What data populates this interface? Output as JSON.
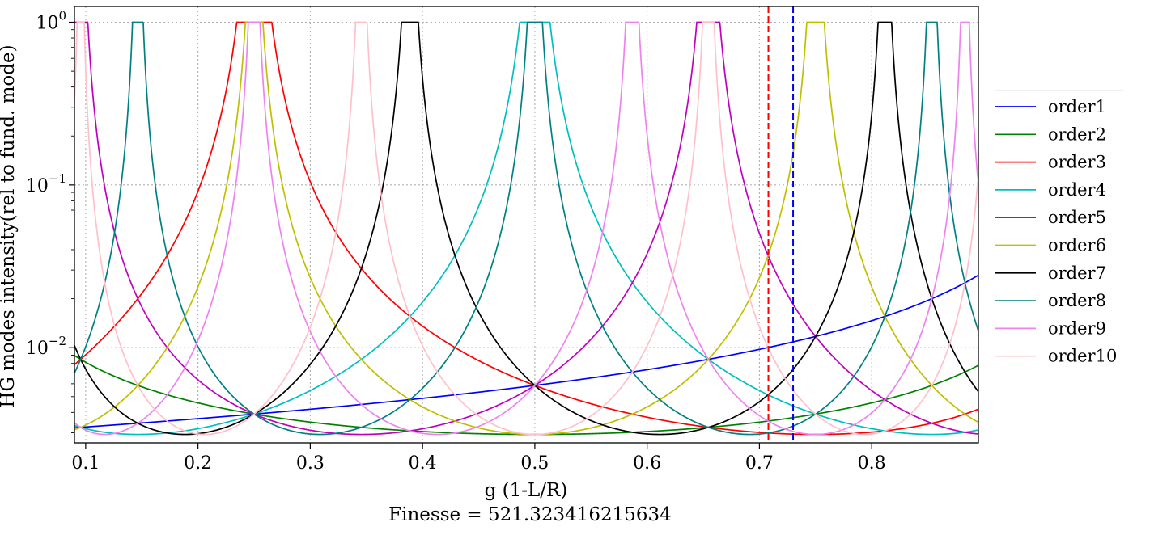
{
  "chart_data": {
    "type": "line",
    "title": "",
    "xlabel": "g (1-L/R)",
    "ylabel": "HG modes intensity(rel to fund. mode)",
    "subtitle": "Finesse = 521.323416215634",
    "xscale": "linear",
    "yscale": "log",
    "xlim": [
      0.09,
      0.895
    ],
    "ylim": [
      0.0026,
      1.25
    ],
    "grid": true,
    "legend_position": "outside right",
    "x_ticks": [
      "0.1",
      "0.2",
      "0.3",
      "0.4",
      "0.5",
      "0.6",
      "0.7",
      "0.8"
    ],
    "y_ticks": [
      {
        "value": 1,
        "base": "10",
        "exp": "0"
      },
      {
        "value": 0.1,
        "base": "10",
        "exp": "−1"
      },
      {
        "value": 0.01,
        "base": "10",
        "exp": "−2"
      }
    ],
    "vlines": [
      {
        "x": 0.708,
        "color": "#ff0000",
        "style": "dashed"
      },
      {
        "x": 0.73,
        "color": "#0000ff",
        "style": "dashed"
      }
    ],
    "finesse": 521.323416215634,
    "floor": 0.00293,
    "series": [
      {
        "name": "order1",
        "order": 1,
        "color": "#0000ff"
      },
      {
        "name": "order2",
        "order": 2,
        "color": "#008000"
      },
      {
        "name": "order3",
        "order": 3,
        "color": "#ff0000"
      },
      {
        "name": "order4",
        "order": 4,
        "color": "#00bfbf"
      },
      {
        "name": "order5",
        "order": 5,
        "color": "#bf00bf"
      },
      {
        "name": "order6",
        "order": 6,
        "color": "#bfbf00"
      },
      {
        "name": "order7",
        "order": 7,
        "color": "#000000"
      },
      {
        "name": "order8",
        "order": 8,
        "color": "#008080"
      },
      {
        "name": "order9",
        "order": 9,
        "color": "#ee82ee"
      },
      {
        "name": "order10",
        "order": 10,
        "color": "#ffc0cb"
      }
    ]
  }
}
